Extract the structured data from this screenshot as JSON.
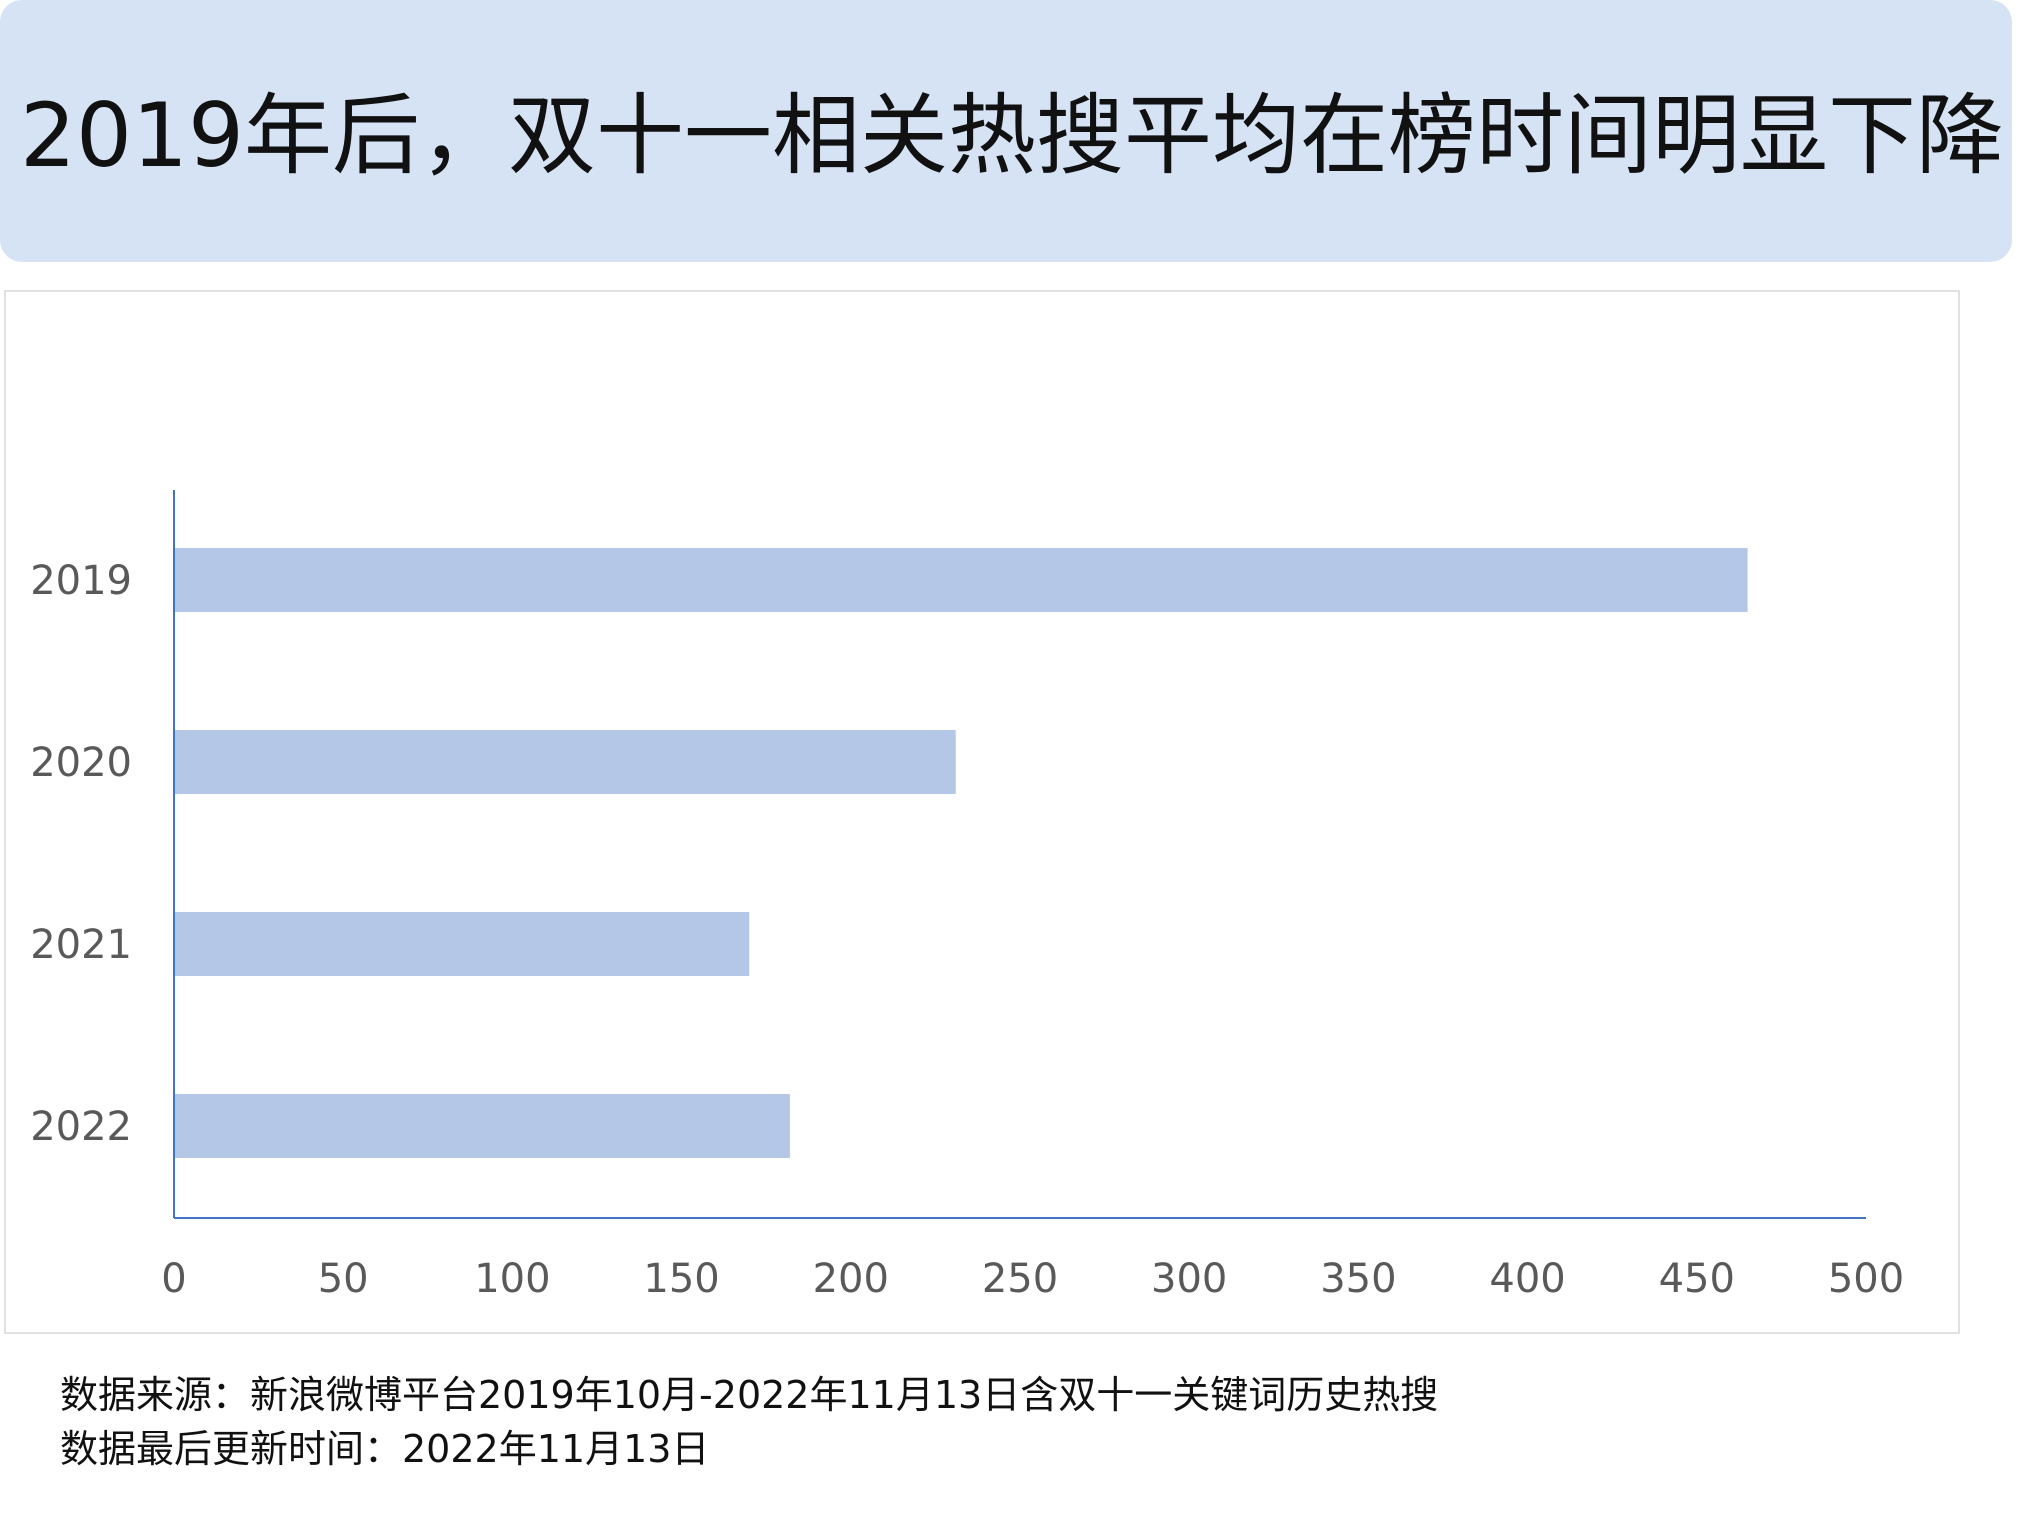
{
  "title": "2019年后，双十一相关热搜平均在榜时间明显下降",
  "chart_data": {
    "type": "bar",
    "orientation": "horizontal",
    "categories": [
      "2019",
      "2020",
      "2021",
      "2022"
    ],
    "values": [
      465,
      231,
      170,
      182
    ],
    "xlim": [
      0,
      500
    ],
    "xticks": [
      "0",
      "50",
      "100",
      "150",
      "200",
      "250",
      "300",
      "350",
      "400",
      "450",
      "500"
    ],
    "grid": false,
    "legend": "none",
    "bar_color": "#b4c7e7",
    "axis_color": "#4472c4"
  },
  "source": {
    "line1": "数据来源：新浪微博平台2019年10月-2022年11月13日含双十一关键词历史热搜",
    "line2": "数据最后更新时间：2022年11月13日"
  },
  "colors": {
    "banner": "#d6e3f5",
    "tick_text": "#595959"
  }
}
